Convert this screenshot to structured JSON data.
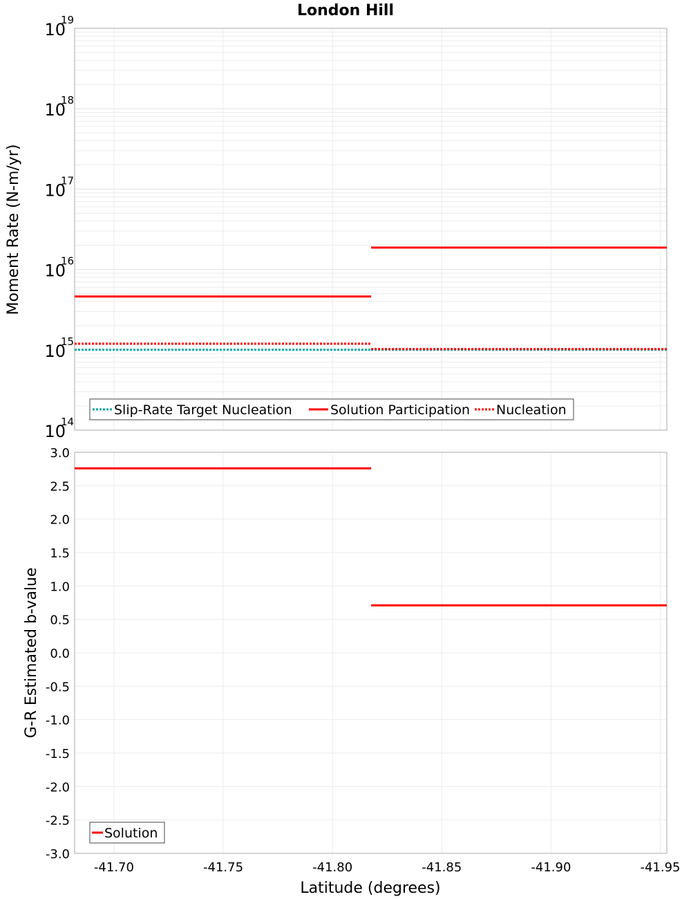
{
  "chart_data": [
    {
      "type": "line",
      "title": "London Hill",
      "xlabel": "Latitude (degrees)",
      "ylabel": "Moment Rate (N-m/yr)",
      "yscale": "log",
      "ylim": [
        100000000000000.0,
        1e+19
      ],
      "xlim": [
        -41.682,
        -41.953
      ],
      "x_reversed": true,
      "xticks": [
        -41.7,
        -41.75,
        -41.8,
        -41.85,
        -41.9,
        -41.95
      ],
      "xtick_labels": [
        "-41.70",
        "-41.75",
        "-41.80",
        "-41.85",
        "-41.90",
        "-41.95"
      ],
      "ytick_exponents": [
        "19",
        "18",
        "17",
        "16",
        "15",
        "14"
      ],
      "ytick_base": "10",
      "grid": true,
      "legend_placement": "bottom-left",
      "series": [
        {
          "name": "Slip-Rate Target Nucleation",
          "color": "#00a8a8",
          "style": "dotted",
          "segments": [
            {
              "x": [
                -41.682,
                -41.8177
              ],
              "y": 1000000000000000.0
            },
            {
              "x": [
                -41.8177,
                -41.953
              ],
              "y": 1000000000000000.0
            }
          ]
        },
        {
          "name": "Solution Participation",
          "color": "#ff0000",
          "style": "solid",
          "segments": [
            {
              "x": [
                -41.682,
                -41.8177
              ],
              "y": 4600000000000000.0
            },
            {
              "x": [
                -41.8177,
                -41.953
              ],
              "y": 1.87e+16
            }
          ]
        },
        {
          "name": "Nucleation",
          "color": "#ff0000",
          "style": "dotted",
          "segments": [
            {
              "x": [
                -41.682,
                -41.8177
              ],
              "y": 1190000000000000.0
            },
            {
              "x": [
                -41.8177,
                -41.953
              ],
              "y": 1020000000000000.0
            }
          ]
        }
      ]
    },
    {
      "type": "line",
      "xlabel": "Latitude (degrees)",
      "ylabel": "G-R Estimated b-value",
      "ylim": [
        -3.0,
        3.0
      ],
      "yticks": [
        3.0,
        2.5,
        2.0,
        1.5,
        1.0,
        0.5,
        0.0,
        -0.5,
        -1.0,
        -1.5,
        -2.0,
        -2.5,
        -3.0
      ],
      "ytick_labels": [
        "3.0",
        "2.5",
        "2.0",
        "1.5",
        "1.0",
        "0.5",
        "0.0",
        "-0.5",
        "-1.0",
        "-1.5",
        "-2.0",
        "-2.5",
        "-3.0"
      ],
      "grid": true,
      "legend_placement": "bottom-left",
      "series": [
        {
          "name": "Solution",
          "color": "#ff0000",
          "style": "solid",
          "segments": [
            {
              "x": [
                -41.682,
                -41.8177
              ],
              "y": 2.76
            },
            {
              "x": [
                -41.8177,
                -41.953
              ],
              "y": 0.71
            }
          ]
        }
      ]
    }
  ]
}
